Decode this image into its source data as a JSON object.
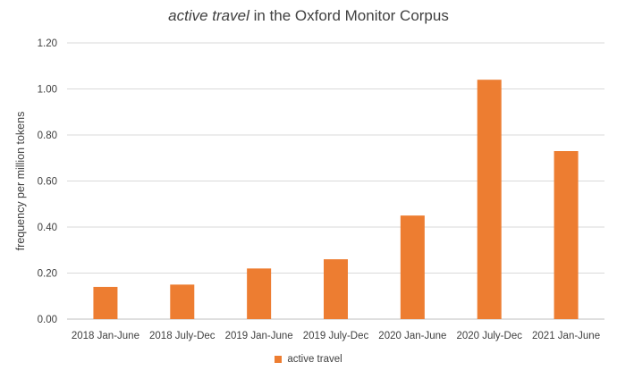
{
  "chart_data": {
    "type": "bar",
    "title_italic": "active travel",
    "title_rest": " in the Oxford Monitor Corpus",
    "ylabel": "frequency per million tokens",
    "ylim": [
      0,
      1.2
    ],
    "yticks": [
      "0.00",
      "0.20",
      "0.40",
      "0.60",
      "0.80",
      "1.00",
      "1.20"
    ],
    "categories": [
      "2018 Jan-June",
      "2018 July-Dec",
      "2019 Jan-June",
      "2019 July-Dec",
      "2020 Jan-June",
      "2020 July-Dec",
      "2021 Jan-June"
    ],
    "series": [
      {
        "name": "active travel",
        "values": [
          0.14,
          0.15,
          0.22,
          0.26,
          0.45,
          1.04,
          0.73
        ]
      }
    ],
    "grid": true,
    "legend_position": "bottom",
    "colors": {
      "bar": "#ED7D31",
      "grid": "#D9D9D9",
      "axis": "#BFBFBF",
      "text": "#404040"
    }
  }
}
